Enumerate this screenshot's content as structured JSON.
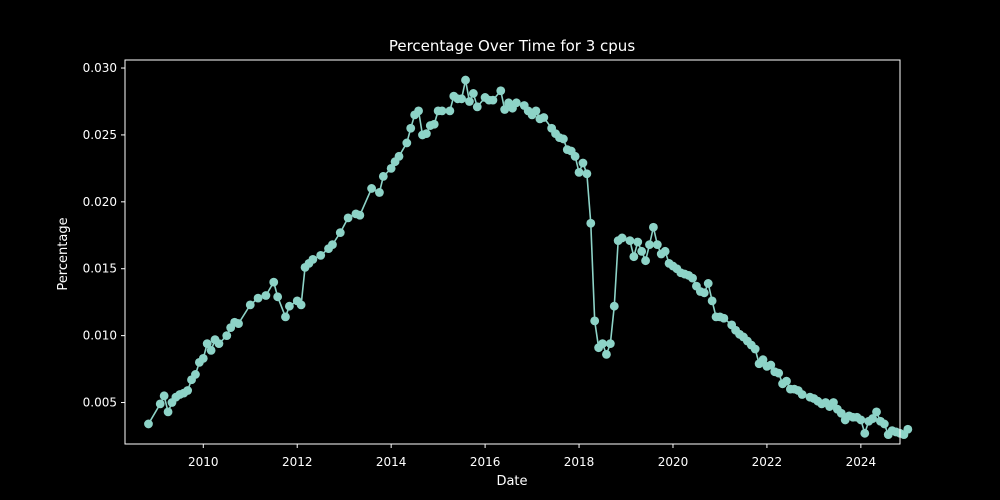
{
  "chart_data": {
    "type": "line",
    "title": "Percentage Over Time for 3 cpus",
    "xlabel": "Date",
    "ylabel": "Percentage",
    "x_range": [
      "2008-05",
      "2024-11"
    ],
    "ylim": [
      0.0019,
      0.0306
    ],
    "x_ticks": [
      "2010",
      "2012",
      "2014",
      "2016",
      "2018",
      "2020",
      "2022",
      "2024"
    ],
    "y_ticks": [
      "0.005",
      "0.010",
      "0.015",
      "0.020",
      "0.025",
      "0.030"
    ],
    "grid": false,
    "legend": "none",
    "colors": {
      "background": "#000000",
      "series": "#8dd3c7",
      "axes": "#ffffff"
    },
    "series": [
      {
        "marker": "circle",
        "points": [
          [
            "2008-11",
            0.0034
          ],
          [
            "2009-02",
            0.0049
          ],
          [
            "2009-03",
            0.0055
          ],
          [
            "2009-04",
            0.0043
          ],
          [
            "2009-05",
            0.005
          ],
          [
            "2009-06",
            0.0054
          ],
          [
            "2009-07",
            0.0056
          ],
          [
            "2009-08",
            0.0057
          ],
          [
            "2009-09",
            0.0059
          ],
          [
            "2009-10",
            0.0067
          ],
          [
            "2009-11",
            0.0071
          ],
          [
            "2009-12",
            0.008
          ],
          [
            "2010-01",
            0.0083
          ],
          [
            "2010-02",
            0.0094
          ],
          [
            "2010-03",
            0.0089
          ],
          [
            "2010-04",
            0.0097
          ],
          [
            "2010-05",
            0.0094
          ],
          [
            "2010-07",
            0.01
          ],
          [
            "2010-08",
            0.0106
          ],
          [
            "2010-09",
            0.011
          ],
          [
            "2010-10",
            0.0109
          ],
          [
            "2011-01",
            0.0123
          ],
          [
            "2011-03",
            0.0128
          ],
          [
            "2011-05",
            0.013
          ],
          [
            "2011-07",
            0.014
          ],
          [
            "2011-08",
            0.0129
          ],
          [
            "2011-10",
            0.0114
          ],
          [
            "2011-11",
            0.0122
          ],
          [
            "2012-01",
            0.0126
          ],
          [
            "2012-02",
            0.0123
          ],
          [
            "2012-03",
            0.0151
          ],
          [
            "2012-04",
            0.0154
          ],
          [
            "2012-05",
            0.0157
          ],
          [
            "2012-07",
            0.016
          ],
          [
            "2012-09",
            0.0165
          ],
          [
            "2012-10",
            0.0168
          ],
          [
            "2012-12",
            0.0177
          ],
          [
            "2013-02",
            0.0188
          ],
          [
            "2013-04",
            0.0191
          ],
          [
            "2013-05",
            0.019
          ],
          [
            "2013-08",
            0.021
          ],
          [
            "2013-10",
            0.0207
          ],
          [
            "2013-11",
            0.0219
          ],
          [
            "2014-01",
            0.0225
          ],
          [
            "2014-02",
            0.023
          ],
          [
            "2014-03",
            0.0234
          ],
          [
            "2014-05",
            0.0244
          ],
          [
            "2014-06",
            0.0255
          ],
          [
            "2014-07",
            0.0265
          ],
          [
            "2014-08",
            0.0268
          ],
          [
            "2014-09",
            0.025
          ],
          [
            "2014-10",
            0.0251
          ],
          [
            "2014-11",
            0.0257
          ],
          [
            "2014-12",
            0.0258
          ],
          [
            "2015-01",
            0.0268
          ],
          [
            "2015-02",
            0.0268
          ],
          [
            "2015-04",
            0.0268
          ],
          [
            "2015-05",
            0.0279
          ],
          [
            "2015-06",
            0.0277
          ],
          [
            "2015-07",
            0.0277
          ],
          [
            "2015-08",
            0.0291
          ],
          [
            "2015-09",
            0.0275
          ],
          [
            "2015-10",
            0.0281
          ],
          [
            "2015-11",
            0.0271
          ],
          [
            "2016-01",
            0.0278
          ],
          [
            "2016-02",
            0.0276
          ],
          [
            "2016-03",
            0.0276
          ],
          [
            "2016-05",
            0.0283
          ],
          [
            "2016-06",
            0.0269
          ],
          [
            "2016-07",
            0.0274
          ],
          [
            "2016-08",
            0.027
          ],
          [
            "2016-09",
            0.0274
          ],
          [
            "2016-11",
            0.0272
          ],
          [
            "2016-12",
            0.0268
          ],
          [
            "2017-01",
            0.0265
          ],
          [
            "2017-02",
            0.0268
          ],
          [
            "2017-03",
            0.0262
          ],
          [
            "2017-04",
            0.0263
          ],
          [
            "2017-06",
            0.0255
          ],
          [
            "2017-07",
            0.0251
          ],
          [
            "2017-08",
            0.0248
          ],
          [
            "2017-09",
            0.0247
          ],
          [
            "2017-10",
            0.0239
          ],
          [
            "2017-11",
            0.0238
          ],
          [
            "2017-12",
            0.0234
          ],
          [
            "2018-01",
            0.0222
          ],
          [
            "2018-02",
            0.0229
          ],
          [
            "2018-03",
            0.0221
          ],
          [
            "2018-04",
            0.0184
          ],
          [
            "2018-05",
            0.0111
          ],
          [
            "2018-06",
            0.0091
          ],
          [
            "2018-07",
            0.0094
          ],
          [
            "2018-08",
            0.0086
          ],
          [
            "2018-09",
            0.0094
          ],
          [
            "2018-10",
            0.0122
          ],
          [
            "2018-11",
            0.0171
          ],
          [
            "2018-12",
            0.0173
          ],
          [
            "2019-02",
            0.0171
          ],
          [
            "2019-03",
            0.0159
          ],
          [
            "2019-04",
            0.017
          ],
          [
            "2019-05",
            0.0163
          ],
          [
            "2019-06",
            0.0156
          ],
          [
            "2019-07",
            0.0168
          ],
          [
            "2019-08",
            0.0181
          ],
          [
            "2019-09",
            0.0168
          ],
          [
            "2019-10",
            0.0161
          ],
          [
            "2019-11",
            0.0163
          ],
          [
            "2019-12",
            0.0154
          ],
          [
            "2020-01",
            0.0152
          ],
          [
            "2020-02",
            0.015
          ],
          [
            "2020-03",
            0.0147
          ],
          [
            "2020-04",
            0.0146
          ],
          [
            "2020-05",
            0.0145
          ],
          [
            "2020-06",
            0.0143
          ],
          [
            "2020-07",
            0.0137
          ],
          [
            "2020-08",
            0.0133
          ],
          [
            "2020-09",
            0.0132
          ],
          [
            "2020-10",
            0.0139
          ],
          [
            "2020-11",
            0.0126
          ],
          [
            "2020-12",
            0.0114
          ],
          [
            "2021-01",
            0.0114
          ],
          [
            "2021-02",
            0.0113
          ],
          [
            "2021-04",
            0.0108
          ],
          [
            "2021-05",
            0.0104
          ],
          [
            "2021-06",
            0.0101
          ],
          [
            "2021-07",
            0.0099
          ],
          [
            "2021-08",
            0.0096
          ],
          [
            "2021-09",
            0.0093
          ],
          [
            "2021-10",
            0.009
          ],
          [
            "2021-11",
            0.0079
          ],
          [
            "2021-12",
            0.0082
          ],
          [
            "2022-01",
            0.0077
          ],
          [
            "2022-02",
            0.0078
          ],
          [
            "2022-03",
            0.0073
          ],
          [
            "2022-04",
            0.0072
          ],
          [
            "2022-05",
            0.0064
          ],
          [
            "2022-06",
            0.0066
          ],
          [
            "2022-07",
            0.006
          ],
          [
            "2022-08",
            0.006
          ],
          [
            "2022-09",
            0.0059
          ],
          [
            "2022-10",
            0.0056
          ],
          [
            "2022-12",
            0.0054
          ],
          [
            "2023-01",
            0.0053
          ],
          [
            "2023-02",
            0.0051
          ],
          [
            "2023-03",
            0.0049
          ],
          [
            "2023-04",
            0.005
          ],
          [
            "2023-05",
            0.0047
          ],
          [
            "2023-06",
            0.005
          ],
          [
            "2023-07",
            0.0045
          ],
          [
            "2023-08",
            0.0042
          ],
          [
            "2023-09",
            0.0037
          ],
          [
            "2023-10",
            0.004
          ],
          [
            "2023-11",
            0.0039
          ],
          [
            "2023-12",
            0.0039
          ],
          [
            "2024-01",
            0.0037
          ],
          [
            "2024-02",
            0.0027
          ],
          [
            "2024-03",
            0.0036
          ],
          [
            "2024-04",
            0.0038
          ],
          [
            "2024-05",
            0.0043
          ],
          [
            "2024-06",
            0.0036
          ],
          [
            "2024-07",
            0.0034
          ],
          [
            "2024-08",
            0.0026
          ],
          [
            "2024-09",
            0.0029
          ],
          [
            "2024-10",
            0.0028
          ],
          [
            "2024-11",
            0.0027
          ],
          [
            "2024-12",
            0.0026
          ],
          [
            "2025-01",
            0.003
          ]
        ]
      }
    ]
  }
}
